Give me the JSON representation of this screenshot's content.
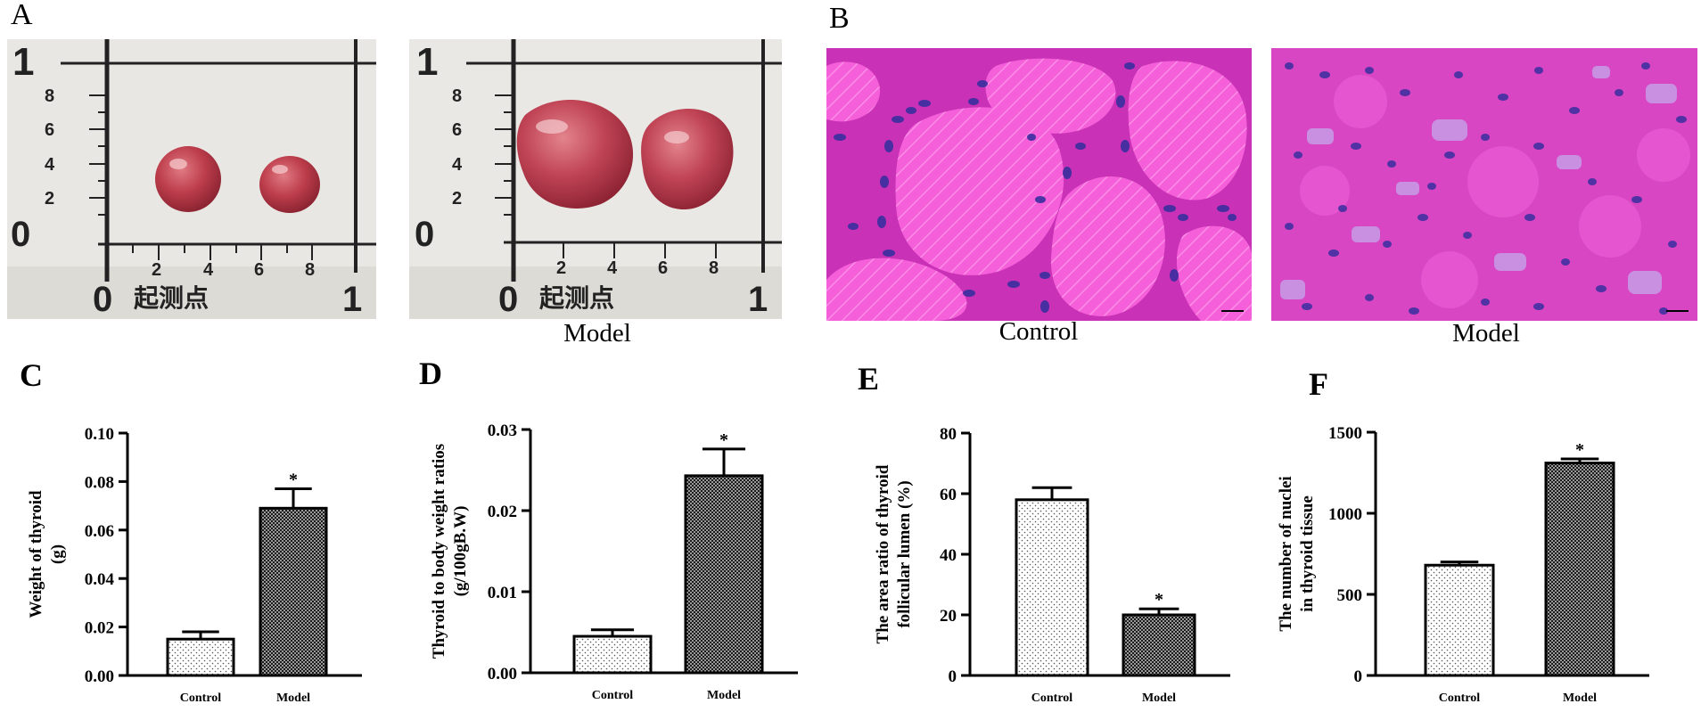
{
  "figure": {
    "panel_a": {
      "letter": "A",
      "ruler": {
        "top_mark": "1",
        "left_ticks": [
          "8",
          "6",
          "4",
          "2"
        ],
        "origin_mark": "0",
        "bottom_ticks": [
          "2",
          "4",
          "6",
          "8"
        ],
        "bottom_zero": "0",
        "bottom_label": "起测点",
        "right_mark": "1"
      },
      "caption_model": "Model"
    },
    "panel_b": {
      "letter": "B",
      "caption_control": "Control",
      "caption_model": "Model"
    }
  },
  "colors": {
    "bar_edge": "#000000",
    "control_fill": "dotted-light",
    "model_fill": "dense-checker-dark",
    "he_pink": "#e93fcf",
    "he_nuclei": "#3a2fa0",
    "tissue_red": "#b83a48"
  },
  "chart_data": [
    {
      "panel": "C",
      "type": "bar",
      "categories": [
        "Control",
        "Model"
      ],
      "values": [
        0.015,
        0.069
      ],
      "errors": [
        0.003,
        0.008
      ],
      "significance": [
        "",
        "*"
      ],
      "ylabel": "Weight of thyroid (g)",
      "ylabel_lines": [
        "Weight of thyroid",
        "(g)"
      ],
      "ylim": [
        0,
        0.1
      ],
      "yticks": [
        "0.00",
        "0.02",
        "0.04",
        "0.06",
        "0.08",
        "0.10"
      ]
    },
    {
      "panel": "D",
      "type": "bar",
      "categories": [
        "Control",
        "Model"
      ],
      "values": [
        0.0045,
        0.0243
      ],
      "errors": [
        0.0008,
        0.0033
      ],
      "significance": [
        "",
        "*"
      ],
      "ylabel": "Thyroid to body weight ratios (g/100gB.W)",
      "ylabel_lines": [
        "Thyroid to body weight ratios",
        "(g/100gB.W)"
      ],
      "ylim": [
        0,
        0.03
      ],
      "yticks": [
        "0.00",
        "0.01",
        "0.02",
        "0.03"
      ]
    },
    {
      "panel": "E",
      "type": "bar",
      "categories": [
        "Control",
        "Model"
      ],
      "values": [
        58,
        20
      ],
      "errors": [
        4,
        2
      ],
      "significance": [
        "",
        "*"
      ],
      "ylabel": "The area ratio of thyroid follicular lumen (%)",
      "ylabel_lines": [
        "The area ratio of  thyroid",
        "follicular lumen (%)"
      ],
      "ylim": [
        0,
        80
      ],
      "yticks": [
        "0",
        "20",
        "40",
        "60",
        "80"
      ]
    },
    {
      "panel": "F",
      "type": "bar",
      "categories": [
        "Control",
        "Model"
      ],
      "values": [
        680,
        1310
      ],
      "errors": [
        20,
        25
      ],
      "significance": [
        "",
        "*"
      ],
      "ylabel": "The number of nuclei in thyroid tissue",
      "ylabel_lines": [
        "The number of nuclei",
        "in thyroid tissue"
      ],
      "ylim": [
        0,
        1500
      ],
      "yticks": [
        "0",
        "500",
        "1000",
        "1500"
      ]
    }
  ]
}
